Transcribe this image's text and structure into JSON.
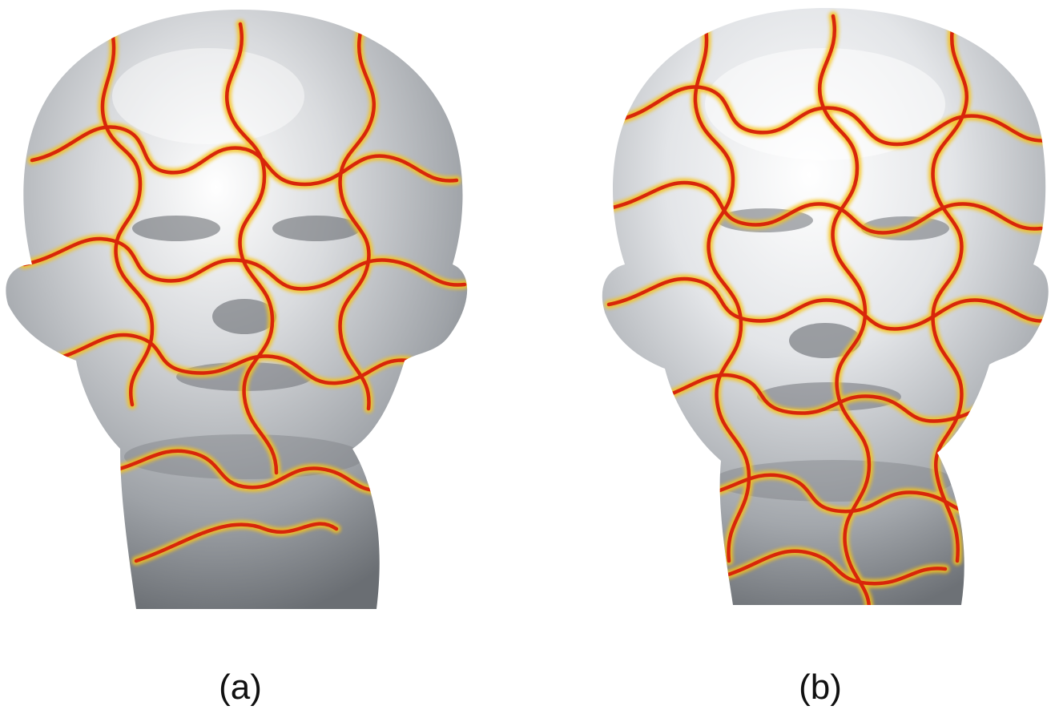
{
  "figure": {
    "panels": [
      {
        "caption": "(a)",
        "icon": "textured-head-a"
      },
      {
        "caption": "(b)",
        "icon": "textured-head-b"
      }
    ],
    "colors": {
      "background": "#ffffff",
      "surface": "#c9ccd0",
      "puzzle_line": "#d8260a",
      "puzzle_glow": "#f6c21a"
    }
  }
}
